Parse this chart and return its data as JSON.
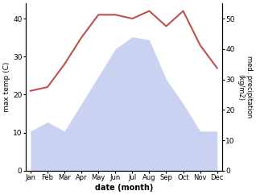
{
  "months": [
    "Jan",
    "Feb",
    "Mar",
    "Apr",
    "May",
    "Jun",
    "Jul",
    "Aug",
    "Sep",
    "Oct",
    "Nov",
    "Dec"
  ],
  "temperature": [
    21,
    22,
    28,
    35,
    41,
    41,
    40,
    42,
    38,
    42,
    33,
    27
  ],
  "precipitation": [
    13,
    16,
    13,
    22,
    31,
    40,
    44,
    43,
    30,
    22,
    13,
    13
  ],
  "temp_color": "#c0504d",
  "precip_fill_color": "#c5cef0",
  "ylabel_left": "max temp (C)",
  "ylabel_right": "med. precipitation\n(kg/m2)",
  "xlabel": "date (month)",
  "ylim_left": [
    0,
    44
  ],
  "ylim_right": [
    0,
    55
  ],
  "yticks_left": [
    0,
    10,
    20,
    30,
    40
  ],
  "yticks_right": [
    0,
    10,
    20,
    30,
    40,
    50
  ],
  "temp_linewidth": 1.5,
  "bg_color": "#ffffff",
  "figsize": [
    3.18,
    2.42
  ],
  "dpi": 100
}
